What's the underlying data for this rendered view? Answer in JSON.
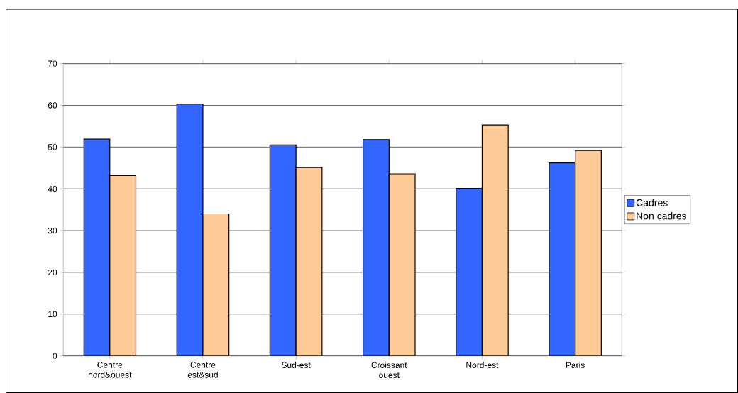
{
  "chart_data": {
    "type": "bar",
    "categories": [
      "Centre nord&ouest",
      "Centre est&sud",
      "Sud-est",
      "Croissant ouest",
      "Nord-est",
      "Paris"
    ],
    "series": [
      {
        "name": "Cadres",
        "color": "#3366ff",
        "values": [
          51.9,
          60.3,
          50.5,
          51.8,
          40.1,
          46.2
        ]
      },
      {
        "name": "Non cadres",
        "color": "#ffcc99",
        "values": [
          43.2,
          34.0,
          45.1,
          43.6,
          55.3,
          49.2
        ]
      }
    ],
    "ylim": [
      0,
      70
    ],
    "yticks": [
      0,
      10,
      20,
      30,
      40,
      50,
      60,
      70
    ],
    "grid": "y",
    "legend": "right"
  }
}
